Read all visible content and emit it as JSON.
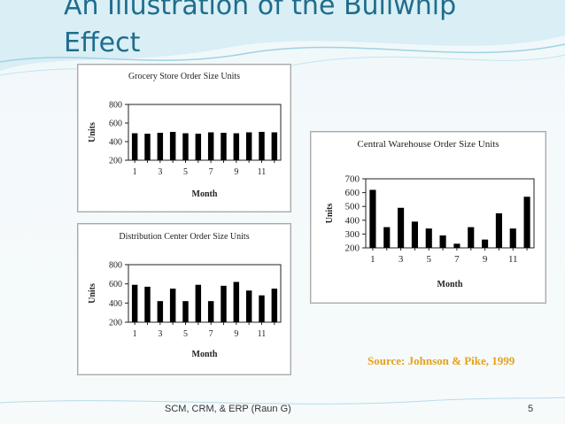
{
  "slide": {
    "title_line1": "An Illustration of the Bullwhip",
    "title_line2": "Effect",
    "source": "Source: Johnson & Pike, 1999",
    "footer": "SCM, CRM, & ERP  (Raun G)",
    "page_number": "5"
  },
  "chart_data": [
    {
      "id": "grocery",
      "type": "bar",
      "title": "Grocery Store Order Size Units",
      "xlabel": "Month",
      "ylabel": "Units",
      "categories": [
        "1",
        "2",
        "3",
        "4",
        "5",
        "6",
        "7",
        "8",
        "9",
        "10",
        "11",
        "12"
      ],
      "x_tick_labels": [
        "1",
        "3",
        "5",
        "7",
        "9",
        "11"
      ],
      "values": [
        490,
        485,
        495,
        505,
        490,
        485,
        500,
        495,
        490,
        500,
        505,
        500
      ],
      "ylim": [
        200,
        800
      ],
      "y_ticks": [
        200,
        400,
        600,
        800
      ]
    },
    {
      "id": "distribution",
      "type": "bar",
      "title": "Distribution Center Order Size Units",
      "xlabel": "Month",
      "ylabel": "Units",
      "categories": [
        "1",
        "2",
        "3",
        "4",
        "5",
        "6",
        "7",
        "8",
        "9",
        "10",
        "11",
        "12"
      ],
      "x_tick_labels": [
        "1",
        "3",
        "5",
        "7",
        "9",
        "11"
      ],
      "values": [
        590,
        570,
        420,
        550,
        420,
        590,
        420,
        580,
        620,
        530,
        480,
        550
      ],
      "ylim": [
        200,
        800
      ],
      "y_ticks": [
        200,
        400,
        600,
        800
      ]
    },
    {
      "id": "warehouse",
      "type": "bar",
      "title": "Central Warehouse Order Size Units",
      "xlabel": "Month",
      "ylabel": "Units",
      "categories": [
        "1",
        "2",
        "3",
        "4",
        "5",
        "6",
        "7",
        "8",
        "9",
        "10",
        "11",
        "12"
      ],
      "x_tick_labels": [
        "1",
        "3",
        "5",
        "7",
        "9",
        "11"
      ],
      "values": [
        620,
        350,
        490,
        390,
        340,
        290,
        230,
        350,
        260,
        450,
        340,
        570
      ],
      "ylim": [
        200,
        700
      ],
      "y_ticks": [
        200,
        300,
        400,
        500,
        600,
        700
      ]
    }
  ]
}
